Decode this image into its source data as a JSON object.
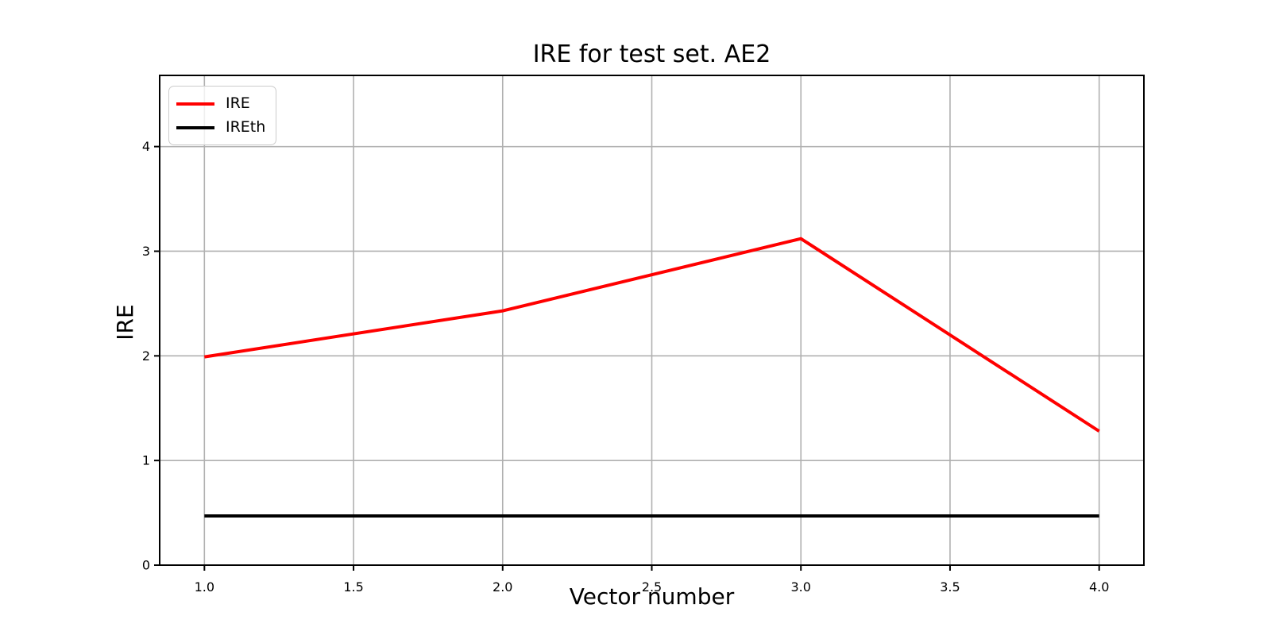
{
  "window": {
    "background": "#ffffff"
  },
  "chart_data": {
    "type": "line",
    "title": "IRE for test set. AE2",
    "xlabel": "Vector number",
    "ylabel": "IRE",
    "x": [
      1,
      2,
      3,
      4
    ],
    "series": [
      {
        "name": "IRE",
        "color": "#ff0000",
        "values": [
          1.99,
          2.43,
          3.12,
          1.28
        ]
      },
      {
        "name": "IREth",
        "color": "#000000",
        "values": [
          0.47,
          0.47,
          0.47,
          0.47
        ]
      }
    ],
    "xlim": [
      0.85,
      4.15
    ],
    "ylim": [
      0,
      4.68
    ],
    "xticks": [
      {
        "v": 1.0,
        "label": "1.0"
      },
      {
        "v": 1.5,
        "label": "1.5"
      },
      {
        "v": 2.0,
        "label": "2.0"
      },
      {
        "v": 2.5,
        "label": "2.5"
      },
      {
        "v": 3.0,
        "label": "3.0"
      },
      {
        "v": 3.5,
        "label": "3.5"
      },
      {
        "v": 4.0,
        "label": "4.0"
      }
    ],
    "yticks": [
      {
        "v": 0,
        "label": "0"
      },
      {
        "v": 1,
        "label": "1"
      },
      {
        "v": 2,
        "label": "2"
      },
      {
        "v": 3,
        "label": "3"
      },
      {
        "v": 4,
        "label": "4"
      }
    ],
    "grid": true,
    "legend_position": "upper left",
    "colors": {
      "grid": "#b0b0b0",
      "spine": "#000000",
      "tick": "#000000",
      "text": "#000000",
      "background": "#ffffff"
    }
  }
}
